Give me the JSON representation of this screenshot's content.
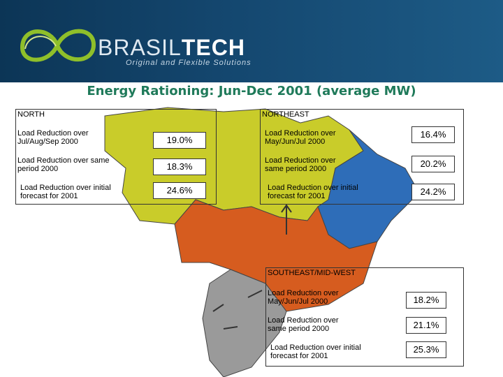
{
  "header": {
    "brand_part1": "BRASIL",
    "brand_part2": "TECH",
    "tagline": "Original and Flexible Solutions"
  },
  "title": "Energy Rationing: Jun-Dec 2001 (average MW)",
  "colors": {
    "north": "#c9cc2a",
    "northeast": "#2e6db8",
    "southeast": "#d65c1f",
    "south": "#9a9a9a",
    "title": "#1f7a5a"
  },
  "regions": {
    "north": {
      "title": "NORTH",
      "rows": [
        {
          "label": "Load Reduction over Jul/Aug/Sep 2000",
          "value": "19.0%"
        },
        {
          "label": "Load Reduction over same period 2000",
          "value": "18.3%"
        },
        {
          "label": "Load Reduction over initial forecast for 2001",
          "value": "24.6%"
        }
      ]
    },
    "northeast": {
      "title": "NORTHEAST",
      "rows": [
        {
          "label": "Load Reduction over May/Jun/Jul 2000",
          "value": "16.4%"
        },
        {
          "label": "Load Reduction over same period 2000",
          "value": "20.2%"
        },
        {
          "label": "Load Reduction over initial forecast for 2001",
          "value": "24.2%"
        }
      ]
    },
    "southeast": {
      "title": "SOUTHEAST/MID-WEST",
      "rows": [
        {
          "label": "Load Reduction over May/Jun/Jul 2000",
          "value": "18.2%"
        },
        {
          "label": "Load Reduction over same period 2000",
          "value": "21.1%"
        },
        {
          "label": "Load Reduction over initial forecast for 2001",
          "value": "25.3%"
        }
      ]
    }
  }
}
